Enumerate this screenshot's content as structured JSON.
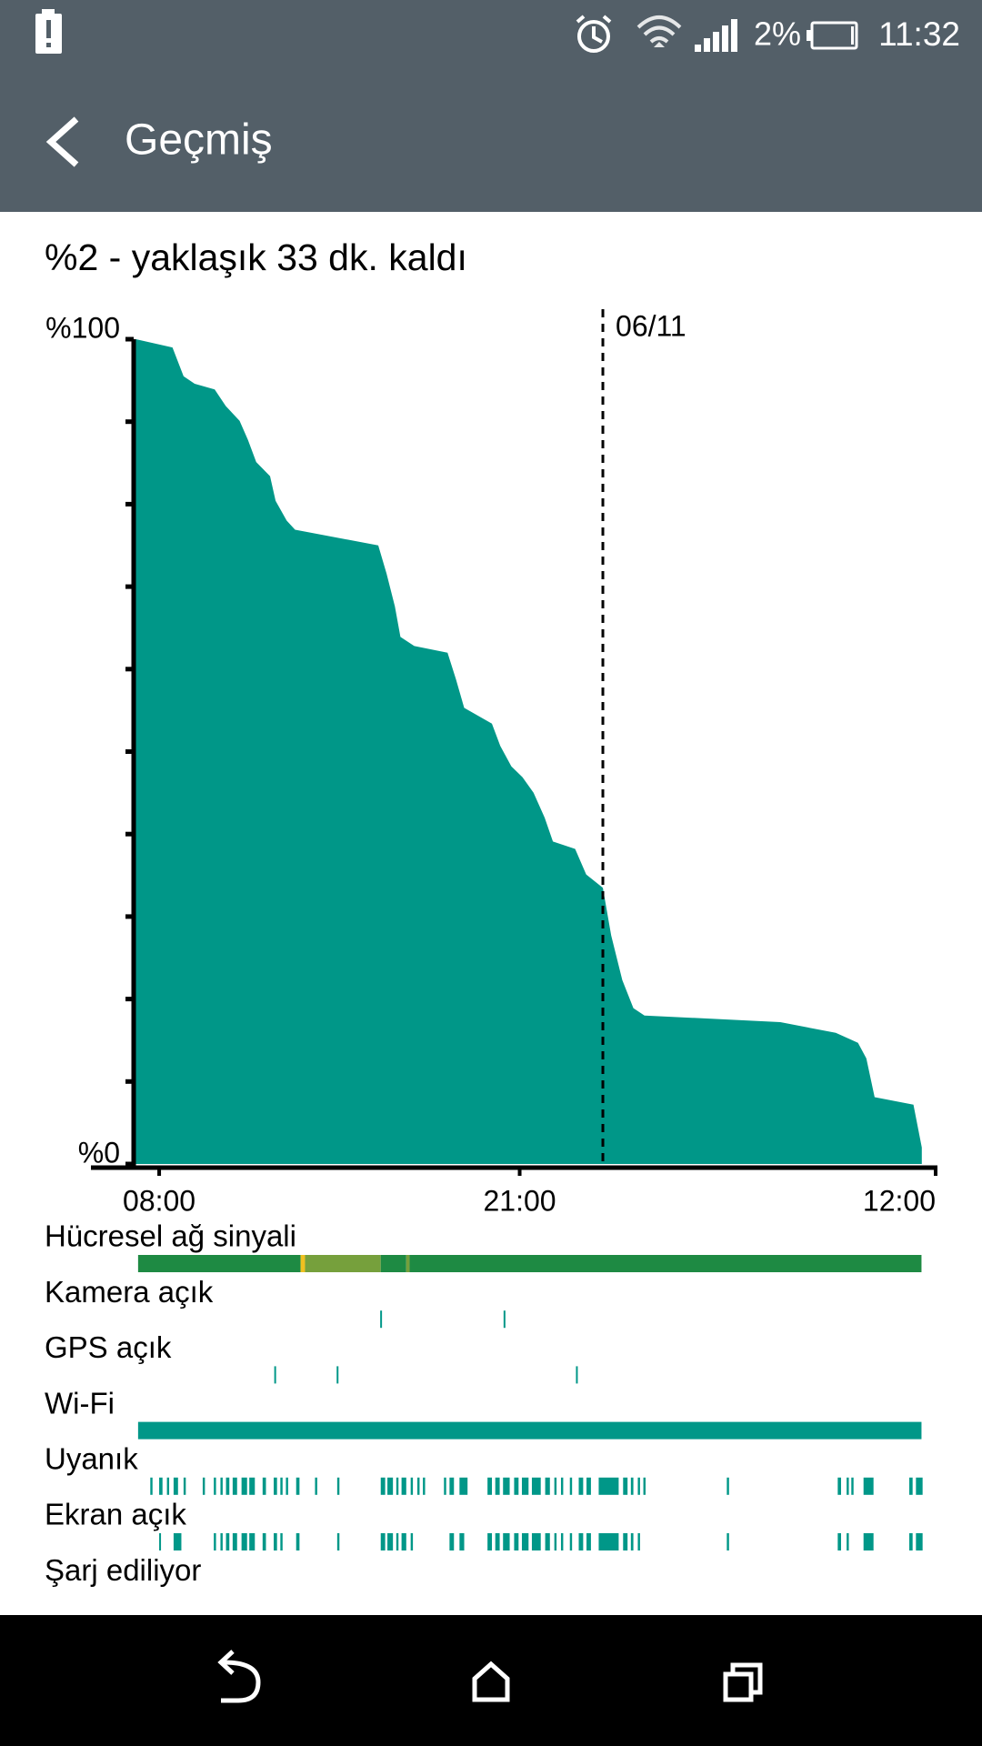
{
  "status_bar": {
    "battery_percent": "2%",
    "time": "11:32"
  },
  "app_bar": {
    "title": "Geçmiş"
  },
  "summary": "%2 - yaklaşık 33 dk. kaldı",
  "chart_data": {
    "type": "area",
    "color": "#009788",
    "x": [
      7.16,
      8.48,
      8.88,
      9.28,
      10.0,
      10.4,
      10.9,
      11.2,
      11.5,
      12.0,
      12.2,
      12.6,
      12.9,
      15.9,
      16.2,
      16.5,
      16.7,
      17.2,
      18.4,
      18.7,
      19.0,
      20.0,
      20.3,
      20.7,
      21.1,
      21.5,
      21.9,
      22.2,
      23.0,
      23.4,
      24.0,
      24.3,
      24.7,
      25.1,
      25.5,
      30.4,
      32.4,
      33.2,
      33.5,
      33.8,
      35.2,
      35.5
    ],
    "values": [
      100,
      99,
      95.5,
      94.6,
      93.9,
      91.9,
      90.1,
      87.8,
      85.1,
      83.4,
      80.4,
      78.0,
      76.9,
      75.0,
      71.6,
      67.6,
      63.9,
      62.8,
      62.0,
      58.8,
      55.3,
      53.4,
      50.7,
      48.2,
      46.9,
      45.0,
      42.0,
      39.1,
      38.2,
      35.1,
      33.5,
      27.7,
      22.3,
      18.9,
      18.0,
      17.2,
      15.9,
      14.7,
      12.8,
      8.1,
      7.2,
      2.0
    ],
    "xlim": [
      7.08,
      36
    ],
    "ylim": [
      0,
      100
    ],
    "xticks": [
      {
        "value": 8,
        "label": "08:00"
      },
      {
        "value": 21,
        "label": "21:00"
      },
      {
        "value": 36,
        "label": "12:00"
      }
    ],
    "yticks": [
      {
        "value": 0,
        "label": "%0"
      },
      {
        "value": 100,
        "label": "%100"
      }
    ],
    "yminor_ticks": [
      10,
      20,
      30,
      40,
      50,
      60,
      70,
      80,
      90
    ],
    "markers": [
      {
        "value": 24,
        "label": "06/11"
      }
    ]
  },
  "activity": [
    {
      "label": "Hücresel ağ sinyali",
      "intervals": [
        [
          7.24,
          13.1
        ],
        [
          13.1,
          13.26
        ],
        [
          13.26,
          15.99
        ],
        [
          15.99,
          16.91
        ],
        [
          16.91,
          17.03
        ],
        [
          17.03,
          35.49
        ]
      ],
      "colors": [
        "#1e8a43",
        "#f0c020",
        "#76a03c",
        "#1e8a43",
        "#76a03c",
        "#1e8a43"
      ]
    },
    {
      "label": "Kamera açık",
      "color": "#009788",
      "intervals": [
        [
          15.97,
          16.03
        ],
        [
          20.42,
          20.48
        ]
      ]
    },
    {
      "label": "GPS açık",
      "color": "#009788",
      "intervals": [
        [
          12.15,
          12.21
        ],
        [
          14.4,
          14.46
        ],
        [
          23.03,
          23.09
        ]
      ]
    },
    {
      "label": "Wi-Fi",
      "color": "#009788",
      "intervals": [
        [
          7.24,
          35.49
        ]
      ]
    },
    {
      "label": "Uyanık",
      "color": "#009788",
      "intervals": [
        [
          7.68,
          7.76
        ],
        [
          8.0,
          8.12
        ],
        [
          8.28,
          8.36
        ],
        [
          8.52,
          8.68
        ],
        [
          8.88,
          8.96
        ],
        [
          9.57,
          9.65
        ],
        [
          9.97,
          10.05
        ],
        [
          10.21,
          10.29
        ],
        [
          10.41,
          10.53
        ],
        [
          10.65,
          10.81
        ],
        [
          10.97,
          11.17
        ],
        [
          11.25,
          11.45
        ],
        [
          11.73,
          11.85
        ],
        [
          12.13,
          12.25
        ],
        [
          12.37,
          12.45
        ],
        [
          12.57,
          12.65
        ],
        [
          12.94,
          13.06
        ],
        [
          13.62,
          13.7
        ],
        [
          14.42,
          14.5
        ],
        [
          15.99,
          16.15
        ],
        [
          16.23,
          16.43
        ],
        [
          16.55,
          16.63
        ],
        [
          16.74,
          16.91
        ],
        [
          17.07,
          17.15
        ],
        [
          17.31,
          17.39
        ],
        [
          17.51,
          17.59
        ],
        [
          18.27,
          18.35
        ],
        [
          18.47,
          18.63
        ],
        [
          18.83,
          19.12
        ],
        [
          19.84,
          20.0
        ],
        [
          20.12,
          20.28
        ],
        [
          20.4,
          20.64
        ],
        [
          20.8,
          20.96
        ],
        [
          21.08,
          21.32
        ],
        [
          21.44,
          21.76
        ],
        [
          21.92,
          22.09
        ],
        [
          22.25,
          22.33
        ],
        [
          22.49,
          22.57
        ],
        [
          22.81,
          22.89
        ],
        [
          23.13,
          23.29
        ],
        [
          23.41,
          23.57
        ],
        [
          23.85,
          24.57
        ],
        [
          24.73,
          24.89
        ],
        [
          25.01,
          25.1
        ],
        [
          25.26,
          25.34
        ],
        [
          25.46,
          25.54
        ],
        [
          28.47,
          28.55
        ],
        [
          32.47,
          32.59
        ],
        [
          32.79,
          32.87
        ],
        [
          32.96,
          33.04
        ],
        [
          33.4,
          33.76
        ],
        [
          35.05,
          35.17
        ],
        [
          35.29,
          35.53
        ]
      ]
    },
    {
      "label": "Ekran açık",
      "color": "#009788",
      "intervals": [
        [
          8.0,
          8.06
        ],
        [
          8.52,
          8.8
        ],
        [
          9.97,
          10.05
        ],
        [
          10.21,
          10.29
        ],
        [
          10.41,
          10.53
        ],
        [
          10.65,
          10.81
        ],
        [
          10.97,
          11.17
        ],
        [
          11.25,
          11.45
        ],
        [
          11.73,
          11.85
        ],
        [
          12.13,
          12.25
        ],
        [
          12.37,
          12.45
        ],
        [
          12.94,
          13.06
        ],
        [
          14.42,
          14.5
        ],
        [
          15.99,
          16.15
        ],
        [
          16.23,
          16.43
        ],
        [
          16.55,
          16.63
        ],
        [
          16.74,
          16.91
        ],
        [
          17.07,
          17.15
        ],
        [
          18.47,
          18.63
        ],
        [
          18.83,
          19.0
        ],
        [
          19.84,
          20.0
        ],
        [
          20.12,
          20.28
        ],
        [
          20.4,
          20.64
        ],
        [
          20.8,
          20.96
        ],
        [
          21.08,
          21.32
        ],
        [
          21.44,
          21.76
        ],
        [
          21.92,
          22.09
        ],
        [
          22.25,
          22.33
        ],
        [
          22.49,
          22.57
        ],
        [
          22.81,
          22.89
        ],
        [
          23.13,
          23.29
        ],
        [
          23.41,
          23.57
        ],
        [
          23.85,
          24.57
        ],
        [
          24.73,
          24.89
        ],
        [
          25.01,
          25.1
        ],
        [
          25.26,
          25.34
        ],
        [
          28.47,
          28.55
        ],
        [
          32.47,
          32.59
        ],
        [
          32.79,
          32.87
        ],
        [
          33.4,
          33.76
        ],
        [
          35.05,
          35.17
        ],
        [
          35.29,
          35.53
        ]
      ]
    },
    {
      "label": "Şarj ediliyor",
      "color": "#009788",
      "intervals": []
    }
  ]
}
